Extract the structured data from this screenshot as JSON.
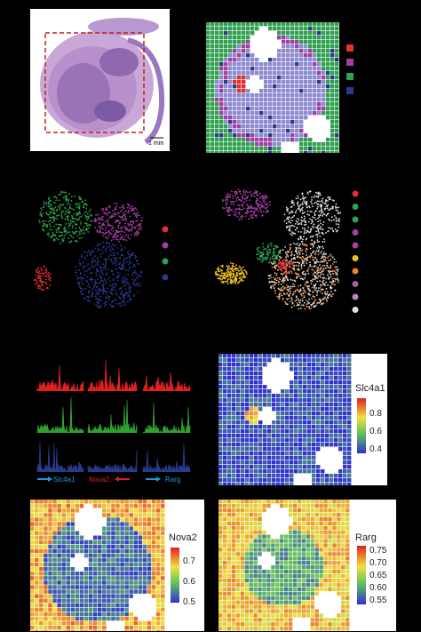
{
  "panel_a": {
    "scale_bar": "1 mm"
  },
  "panel_b": {
    "legend_colors": [
      "#e03030",
      "#a040a0",
      "#30a050",
      "#2a3a8a"
    ],
    "grid_color_main": "#8e8ad0",
    "region_colors": [
      "#e03030",
      "#a040a0",
      "#30a050",
      "#2a3a8a"
    ]
  },
  "panel_c": {
    "legend_colors": [
      "#e03030",
      "#a040a0",
      "#30a050",
      "#2a3a8a"
    ]
  },
  "panel_d": {
    "legend_colors": [
      "#e03030",
      "#30a050",
      "#30a050",
      "#a040a0",
      "#a040a0",
      "#f0c020",
      "#f08020",
      "#a060a0",
      "#c080c0",
      "#e0e0e0"
    ]
  },
  "panel_e": {
    "track_colors": [
      "#e02020",
      "#30a030",
      "#2a3a8a"
    ],
    "genes": [
      "Slc4a1",
      "Nova2",
      "Rarg"
    ]
  },
  "panel_f": {
    "gene": "Slc4a1",
    "ticks": [
      "0.8",
      "0.6",
      "0.4"
    ]
  },
  "panel_g": {
    "gene": "Nova2",
    "ticks": [
      "0.7",
      "0.6",
      "0.5"
    ]
  },
  "panel_h": {
    "gene": "Rarg",
    "ticks": [
      "0.75",
      "0.70",
      "0.65",
      "0.60",
      "0.55"
    ]
  }
}
